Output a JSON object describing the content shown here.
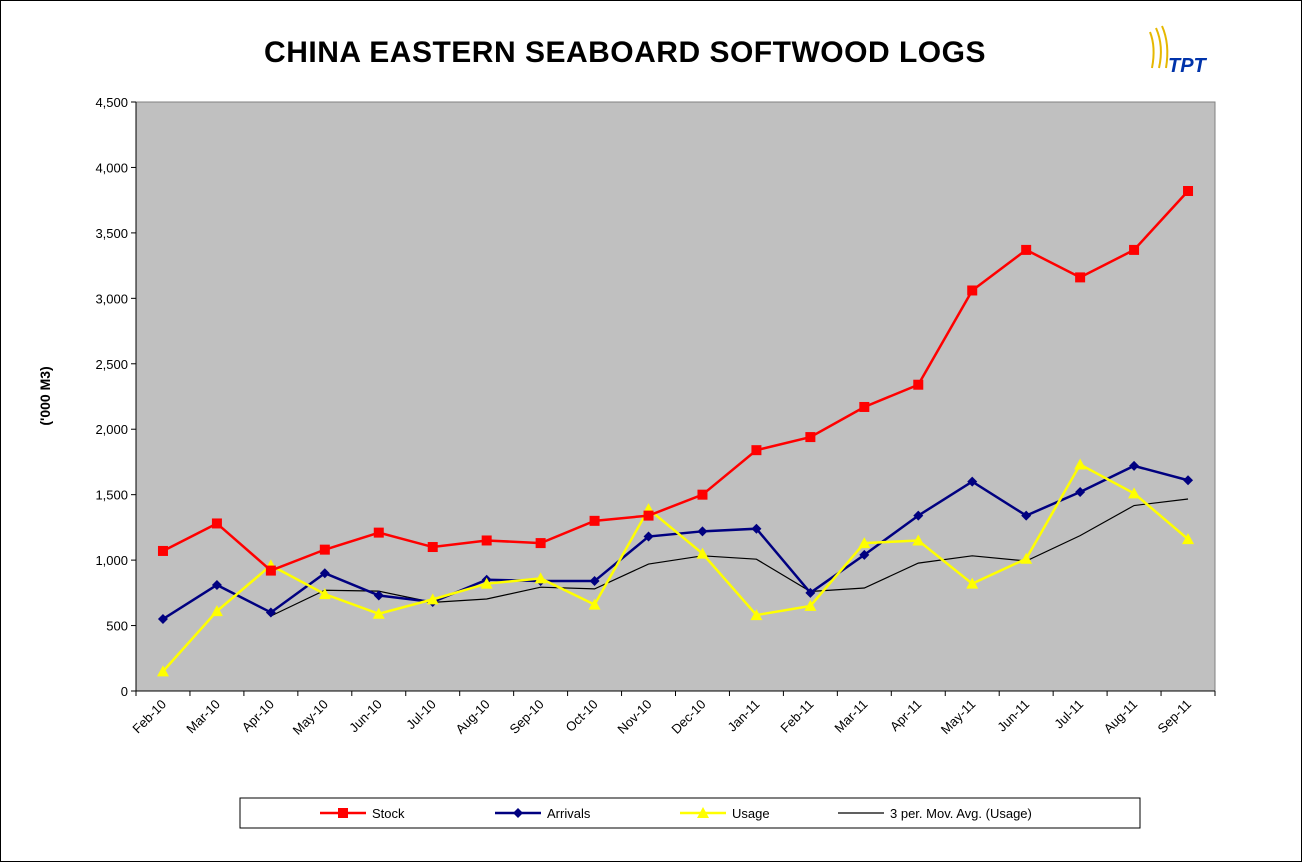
{
  "chart_data": {
    "type": "line",
    "title": "CHINA EASTERN SEABOARD SOFTWOOD LOGS",
    "logo": "TPT",
    "y_label": "('000 M3)",
    "categories": [
      "Feb-10",
      "Mar-10",
      "Apr-10",
      "May-10",
      "Jun-10",
      "Jul-10",
      "Aug-10",
      "Sep-10",
      "Oct-10",
      "Nov-10",
      "Dec-10",
      "Jan-11",
      "Feb-11",
      "Mar-11",
      "Apr-11",
      "May-11",
      "Jun-11",
      "Jul-11",
      "Aug-11",
      "Sep-11"
    ],
    "series": [
      {
        "name": "Stock",
        "color": "#ff0000",
        "marker": "square",
        "values": [
          1070,
          1280,
          920,
          1080,
          1210,
          1100,
          1150,
          1130,
          1300,
          1340,
          1500,
          1840,
          1940,
          2170,
          2340,
          3060,
          3370,
          3160,
          3370,
          3820
        ]
      },
      {
        "name": "Arrivals",
        "color": "#000080",
        "marker": "diamond",
        "values": [
          550,
          810,
          600,
          900,
          730,
          680,
          850,
          840,
          840,
          1180,
          1220,
          1240,
          750,
          1040,
          1340,
          1600,
          1340,
          1520,
          1720,
          1610
        ]
      },
      {
        "name": "Usage",
        "color": "#ffff00",
        "marker": "triangle",
        "values": [
          150,
          610,
          960,
          740,
          590,
          700,
          820,
          860,
          660,
          1390,
          1050,
          580,
          650,
          1130,
          1150,
          820,
          1010,
          1730,
          1510,
          1160
        ]
      },
      {
        "name": "3 per. Mov. Avg. (Usage)",
        "color": "#000000",
        "marker": "none",
        "values": [
          null,
          null,
          573,
          770,
          763,
          677,
          703,
          793,
          780,
          970,
          1033,
          1007,
          760,
          787,
          977,
          1033,
          993,
          1187,
          1417,
          1467
        ]
      }
    ],
    "ylim": [
      0,
      4500
    ],
    "yticks": [
      0,
      500,
      {
        "value": 1000,
        "label": "1,000"
      },
      {
        "value": 1500,
        "label": "1,500"
      },
      {
        "value": 2000,
        "label": "2,000"
      },
      {
        "value": 2500,
        "label": "2,500"
      },
      {
        "value": 3000,
        "label": "3,000"
      },
      {
        "value": 3500,
        "label": "3,500"
      },
      {
        "value": 4000,
        "label": "4,000"
      },
      {
        "value": 4500,
        "label": "4,500"
      }
    ],
    "legend": "bottom"
  }
}
